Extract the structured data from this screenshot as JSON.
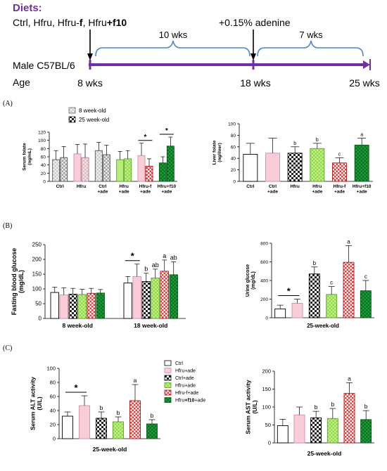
{
  "colors": {
    "purple": "#7030a0",
    "blue": "#4a86c8",
    "diets_title": "#7030a0",
    "white": "#ffffff",
    "pink": "#f8cdd8",
    "grey": "#c8c8c8",
    "light_green": "#b8ec78",
    "red_pattern": "#e83838",
    "dark_green": "#1e9e3a"
  },
  "icons": [
    "arrow-down-icon",
    "arrow-right-icon",
    "brace-icon"
  ],
  "timeline": {
    "diets_label": "Diets:",
    "diets_line_parts": [
      {
        "text": "Ctrl, Hfru, Hfru-",
        "bold": false
      },
      {
        "text": "f",
        "bold": true
      },
      {
        "text": ", Hfru",
        "bold": false
      },
      {
        "text": "+f10",
        "bold": true
      }
    ],
    "adenine_label": "+0.15% adenine",
    "span1_label": "10 wks",
    "span2_label": "7 wks",
    "mouse_label": "Male C57BL/6",
    "age_label": "Age",
    "age_ticks": [
      "8 wks",
      "18 wks",
      "25 wks"
    ]
  },
  "panel_labels": {
    "a": "(A)",
    "b": "(B)",
    "c": "(C)"
  },
  "chart_data": [
    {
      "id": "serum-folate",
      "type": "bar",
      "ylabel": "Serum folate\n(ng/mL)",
      "ylim": [
        0,
        120
      ],
      "yticks": [
        "0",
        "20",
        "40",
        "60",
        "80",
        "100",
        "120"
      ],
      "group_labels": [
        "Ctrl",
        "Hfru",
        "Ctrl\n+ade",
        "Hfru\n+ade",
        "Hfru-f\n+ade",
        "Hfru+f10\n+ade"
      ],
      "legend": [
        "8 week-old",
        "25 week-old"
      ],
      "legend_position": "top-left",
      "series": [
        {
          "name": "8 week-old",
          "values": [
            53,
            67,
            75,
            53,
            63,
            45
          ],
          "errors": [
            22,
            23,
            20,
            20,
            30,
            15
          ]
        },
        {
          "name": "25 week-old",
          "values": [
            58,
            58,
            65,
            55,
            37,
            86
          ],
          "errors": [
            27,
            33,
            23,
            20,
            18,
            22
          ]
        }
      ],
      "significance": [
        {
          "group": 4,
          "label": "*"
        },
        {
          "group": 5,
          "label": "*"
        }
      ]
    },
    {
      "id": "liver-folate",
      "type": "bar",
      "ylabel": "Liver folate\n(ng/liver)",
      "ylim": [
        0,
        100
      ],
      "yticks": [
        "0",
        "20",
        "40",
        "60",
        "80",
        "100"
      ],
      "categories": [
        "Ctrl",
        "Ctrl\n+ade",
        "Hfru",
        "Hfru\n+ade",
        "Hfru-f\n+ade",
        "Hfru+f10\n+ade"
      ],
      "values": [
        47,
        49,
        49,
        57,
        32,
        63
      ],
      "errors": [
        19,
        26,
        11,
        9,
        9,
        12
      ],
      "letters": [
        "",
        "",
        "b",
        "b",
        "c",
        "a"
      ]
    },
    {
      "id": "fasting-glucose",
      "type": "bar",
      "ylabel": "Fasting blood glucose\n(mg/dL)",
      "ylim": [
        0,
        250
      ],
      "yticks": [
        "0",
        "50",
        "100",
        "150",
        "200",
        "250"
      ],
      "groups": [
        {
          "label": "8 week-old",
          "values": [
            88,
            80,
            82,
            81,
            85,
            86
          ],
          "errors": [
            18,
            24,
            20,
            18,
            17,
            12
          ],
          "letters": [
            "",
            "",
            "",
            "",
            "",
            ""
          ]
        },
        {
          "label": "18 week-old",
          "values": [
            120,
            142,
            125,
            137,
            160,
            148
          ],
          "errors": [
            22,
            42,
            28,
            30,
            38,
            44
          ],
          "letters": [
            "",
            "",
            "b",
            "ab",
            "a",
            "ab"
          ]
        }
      ],
      "significance": [
        {
          "group": 1,
          "label": "*"
        }
      ]
    },
    {
      "id": "urine-glucose",
      "type": "bar",
      "ylabel": "Urine glucose\n(mg/dL)",
      "xlabel": "25-week-old",
      "ylim": [
        0,
        800
      ],
      "yticks": [
        "0",
        "200",
        "400",
        "600",
        "800"
      ],
      "values": [
        95,
        155,
        470,
        250,
        595,
        290
      ],
      "errors": [
        40,
        45,
        75,
        85,
        180,
        110
      ],
      "letters": [
        "",
        "",
        "b",
        "c",
        "a",
        "c"
      ],
      "significance": [
        {
          "label": "*"
        }
      ]
    },
    {
      "id": "serum-alt",
      "type": "bar",
      "ylabel": "Serum ALT activity\n(U/L)",
      "xlabel": "25-week-old",
      "ylim": [
        0,
        100
      ],
      "yticks": [
        "0",
        "20",
        "40",
        "60",
        "80",
        "100"
      ],
      "values": [
        32,
        47,
        29,
        24,
        54,
        21
      ],
      "errors": [
        6,
        14,
        9,
        7,
        23,
        6
      ],
      "letters": [
        "",
        "",
        "b",
        "b",
        "a",
        "b"
      ],
      "significance": [
        {
          "label": "*"
        }
      ],
      "legend": [
        "Ctrl",
        "Hfru+ade",
        "Ctrl+ade",
        "Hfru+ade",
        "Hfru-f+ade",
        "Hfru+f10+ade"
      ],
      "legend_position": "right"
    },
    {
      "id": "serum-ast",
      "type": "bar",
      "ylabel": "Serum AST activity\n(U/L)",
      "xlabel": "25-week-old",
      "ylim": [
        0,
        200
      ],
      "yticks": [
        "0",
        "50",
        "100",
        "150",
        "200"
      ],
      "values": [
        48,
        78,
        70,
        68,
        138,
        65
      ],
      "errors": [
        18,
        22,
        18,
        28,
        30,
        25
      ],
      "letters": [
        "",
        "",
        "b",
        "b",
        "a",
        "b"
      ]
    }
  ]
}
